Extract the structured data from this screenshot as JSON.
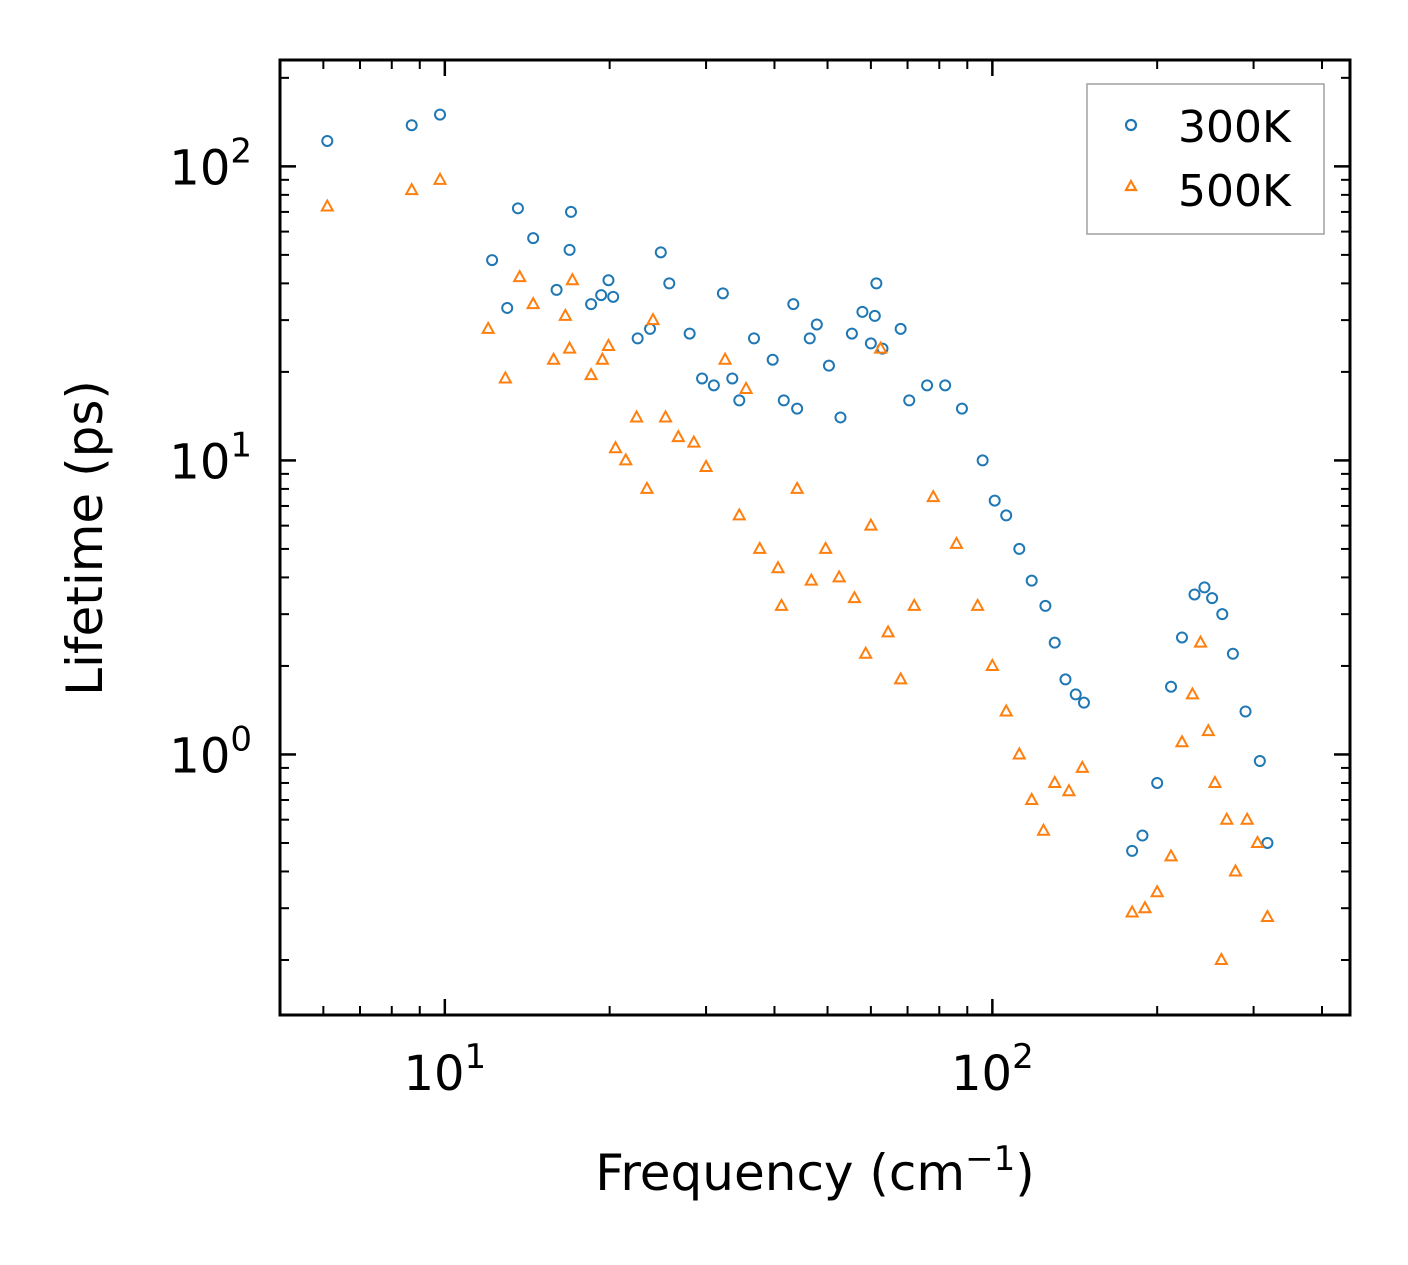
{
  "chart_data": {
    "type": "scatter",
    "title": "",
    "xlabel": "Frequency (cm",
    "xlabel_sup": "−1",
    "xlabel_end": ")",
    "ylabel": "Lifetime (ps)",
    "xscale": "log",
    "yscale": "log",
    "xlim": [
      5.0,
      450.0
    ],
    "ylim": [
      0.13,
      230.0
    ],
    "x_ticks": [
      {
        "value": 10,
        "base": "10",
        "exp": "1"
      },
      {
        "value": 100,
        "base": "10",
        "exp": "2"
      }
    ],
    "y_ticks": [
      {
        "value": 1,
        "base": "10",
        "exp": "0"
      },
      {
        "value": 10,
        "base": "10",
        "exp": "1"
      },
      {
        "value": 100,
        "base": "10",
        "exp": "2"
      }
    ],
    "legend_position": "top-right",
    "series": [
      {
        "name": "300K",
        "marker": "circle",
        "color": "#1f77b4",
        "points": [
          [
            6.1,
            122
          ],
          [
            8.7,
            138
          ],
          [
            9.8,
            150
          ],
          [
            12.2,
            48
          ],
          [
            13.0,
            33
          ],
          [
            13.6,
            72
          ],
          [
            14.5,
            57
          ],
          [
            16.0,
            38
          ],
          [
            16.9,
            52
          ],
          [
            17.0,
            70
          ],
          [
            18.5,
            34
          ],
          [
            19.3,
            36.5
          ],
          [
            19.9,
            41
          ],
          [
            20.3,
            36
          ],
          [
            22.5,
            26
          ],
          [
            23.7,
            28
          ],
          [
            24.8,
            51
          ],
          [
            25.7,
            40
          ],
          [
            28.0,
            27
          ],
          [
            29.5,
            19
          ],
          [
            31.0,
            18
          ],
          [
            32.2,
            37
          ],
          [
            33.5,
            19
          ],
          [
            34.5,
            16
          ],
          [
            36.7,
            26
          ],
          [
            39.7,
            22
          ],
          [
            41.6,
            16
          ],
          [
            43.3,
            34
          ],
          [
            44.0,
            15
          ],
          [
            46.4,
            26
          ],
          [
            47.8,
            29
          ],
          [
            50.3,
            21
          ],
          [
            52.8,
            14
          ],
          [
            55.4,
            27
          ],
          [
            57.9,
            32
          ],
          [
            60.0,
            25
          ],
          [
            61.0,
            31
          ],
          [
            61.4,
            40
          ],
          [
            63.0,
            24
          ],
          [
            68.0,
            28
          ],
          [
            70.5,
            16
          ],
          [
            76.0,
            18
          ],
          [
            82.0,
            18
          ],
          [
            88.0,
            15
          ],
          [
            96.0,
            10
          ],
          [
            101.0,
            7.3
          ],
          [
            106.0,
            6.5
          ],
          [
            112.0,
            5.0
          ],
          [
            118.0,
            3.9
          ],
          [
            125.0,
            3.2
          ],
          [
            130.0,
            2.4
          ],
          [
            136.0,
            1.8
          ],
          [
            142.0,
            1.6
          ],
          [
            147.0,
            1.5
          ],
          [
            180.0,
            0.47
          ],
          [
            188.0,
            0.53
          ],
          [
            200.0,
            0.8
          ],
          [
            212.0,
            1.7
          ],
          [
            222.0,
            2.5
          ],
          [
            234.0,
            3.5
          ],
          [
            244.0,
            3.7
          ],
          [
            252.0,
            3.4
          ],
          [
            263.0,
            3.0
          ],
          [
            275.0,
            2.2
          ],
          [
            290.0,
            1.4
          ],
          [
            308.0,
            0.95
          ],
          [
            318.0,
            0.5
          ]
        ]
      },
      {
        "name": "500K",
        "marker": "triangle",
        "color": "#ff7f0e",
        "points": [
          [
            6.1,
            73
          ],
          [
            8.7,
            83
          ],
          [
            9.8,
            90
          ],
          [
            12.0,
            28
          ],
          [
            12.9,
            19
          ],
          [
            13.7,
            42
          ],
          [
            14.5,
            34
          ],
          [
            15.8,
            22
          ],
          [
            16.6,
            31
          ],
          [
            16.9,
            24
          ],
          [
            17.1,
            41
          ],
          [
            18.5,
            19.5
          ],
          [
            19.4,
            22
          ],
          [
            19.9,
            24.5
          ],
          [
            20.5,
            11
          ],
          [
            21.4,
            10
          ],
          [
            22.4,
            14
          ],
          [
            23.4,
            8
          ],
          [
            24.0,
            30
          ],
          [
            25.3,
            14
          ],
          [
            26.7,
            12
          ],
          [
            28.5,
            11.5
          ],
          [
            30.0,
            9.5
          ],
          [
            32.5,
            22
          ],
          [
            34.5,
            6.5
          ],
          [
            35.5,
            17.5
          ],
          [
            37.6,
            5.0
          ],
          [
            40.6,
            4.3
          ],
          [
            41.2,
            3.2
          ],
          [
            44.0,
            8
          ],
          [
            46.7,
            3.9
          ],
          [
            49.6,
            5.0
          ],
          [
            52.5,
            4.0
          ],
          [
            56.0,
            3.4
          ],
          [
            58.7,
            2.2
          ],
          [
            60.0,
            6
          ],
          [
            62.5,
            24
          ],
          [
            64.5,
            2.6
          ],
          [
            68.0,
            1.8
          ],
          [
            72.0,
            3.2
          ],
          [
            78.0,
            7.5
          ],
          [
            86.0,
            5.2
          ],
          [
            94.0,
            3.2
          ],
          [
            100.0,
            2.0
          ],
          [
            106.0,
            1.4
          ],
          [
            112.0,
            1.0
          ],
          [
            118.0,
            0.7
          ],
          [
            124.0,
            0.55
          ],
          [
            130.0,
            0.8
          ],
          [
            138.0,
            0.75
          ],
          [
            146.0,
            0.9
          ],
          [
            180.0,
            0.29
          ],
          [
            190.0,
            0.3
          ],
          [
            200.0,
            0.34
          ],
          [
            212.0,
            0.45
          ],
          [
            222.0,
            1.1
          ],
          [
            232.0,
            1.6
          ],
          [
            240.0,
            2.4
          ],
          [
            248.0,
            1.2
          ],
          [
            255.0,
            0.8
          ],
          [
            262.0,
            0.2
          ],
          [
            268.0,
            0.6
          ],
          [
            278.0,
            0.4
          ],
          [
            292.0,
            0.6
          ],
          [
            305.0,
            0.5
          ],
          [
            318.0,
            0.28
          ]
        ]
      }
    ]
  }
}
